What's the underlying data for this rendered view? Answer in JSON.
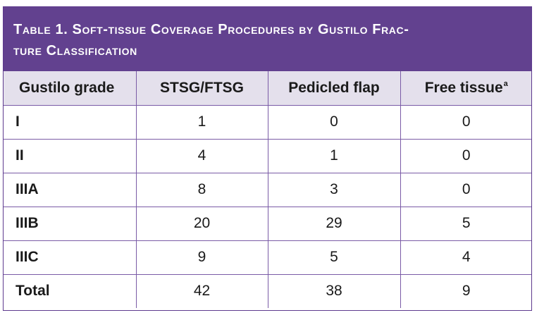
{
  "table": {
    "title": "Table 1. Soft-tissue Coverage Procedures by Gustilo Fracture Classification",
    "title_line1": "Table 1. Soft-tissue Coverage Procedures by Gustilo Frac-",
    "title_line2": "ture Classification",
    "header_color": "#62418f",
    "header_row_color": "#e4e0ec",
    "columns": [
      {
        "label": "Gustilo grade",
        "footnote": ""
      },
      {
        "label": "STSG/FTSG",
        "footnote": ""
      },
      {
        "label": "Pedicled flap",
        "footnote": ""
      },
      {
        "label": "Free tissue",
        "footnote": "a"
      }
    ],
    "rows": [
      {
        "grade": "I",
        "stsg_ftsg": "1",
        "pedicled_flap": "0",
        "free_tissue": "0"
      },
      {
        "grade": "II",
        "stsg_ftsg": "4",
        "pedicled_flap": "1",
        "free_tissue": "0"
      },
      {
        "grade": "IIIA",
        "stsg_ftsg": "8",
        "pedicled_flap": "3",
        "free_tissue": "0"
      },
      {
        "grade": "IIIB",
        "stsg_ftsg": "20",
        "pedicled_flap": "29",
        "free_tissue": "5"
      },
      {
        "grade": "IIIC",
        "stsg_ftsg": "9",
        "pedicled_flap": "5",
        "free_tissue": "4"
      },
      {
        "grade": "Total",
        "stsg_ftsg": "42",
        "pedicled_flap": "38",
        "free_tissue": "9"
      }
    ]
  }
}
